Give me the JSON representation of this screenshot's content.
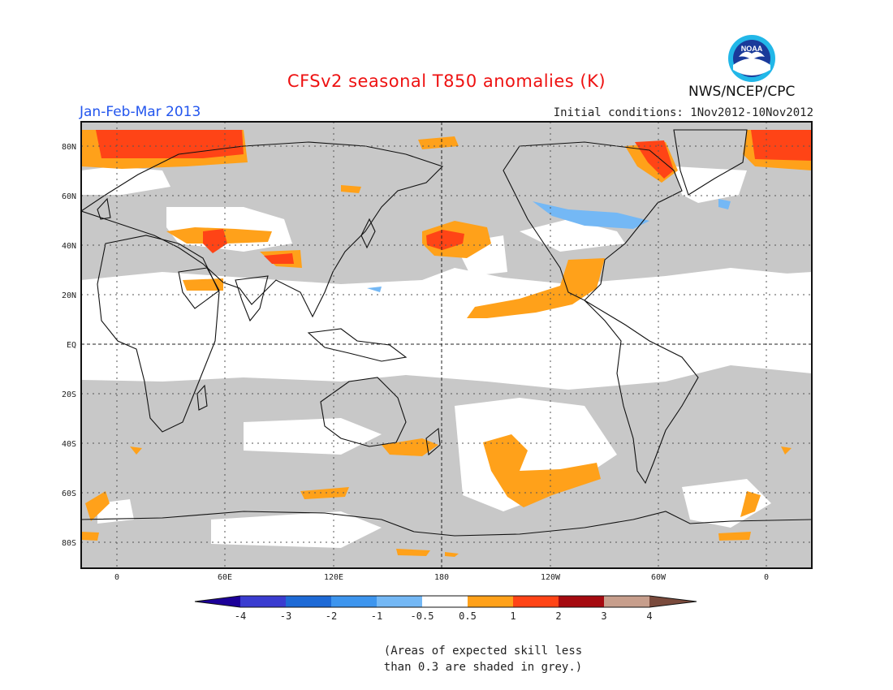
{
  "header": {
    "title": "CFSv2 seasonal T850 anomalies (K)",
    "season": "Jan-Feb-Mar 2013",
    "initial_conditions": "Initial conditions: 1Nov2012-10Nov2012",
    "agency": "NWS/NCEP/CPC",
    "logo_text": "NOAA"
  },
  "map": {
    "lat_labels": [
      "80N",
      "60N",
      "40N",
      "20N",
      "EQ",
      "20S",
      "40S",
      "60S",
      "80S"
    ],
    "lon_labels": [
      "0",
      "60E",
      "120E",
      "180",
      "120W",
      "60W",
      "0"
    ],
    "grey_meaning": "low skill",
    "colors": {
      "grey": "#c8c8c8",
      "land_outline": "#111111"
    }
  },
  "colorbar": {
    "labels": [
      "-4",
      "-3",
      "-2",
      "-1",
      "-0.5",
      "0.5",
      "1",
      "2",
      "3",
      "4"
    ],
    "colors": [
      "#1c0099",
      "#3a3cd0",
      "#1e6ad6",
      "#3d95ee",
      "#74b8f5",
      "#ffffff",
      "#ffa11a",
      "#ff4416",
      "#a50a10",
      "#c79e8c",
      "#7a4a3c"
    ]
  },
  "footnote": {
    "line1": "(Areas of expected skill less",
    "line2": "than 0.3 are shaded in grey.)"
  }
}
